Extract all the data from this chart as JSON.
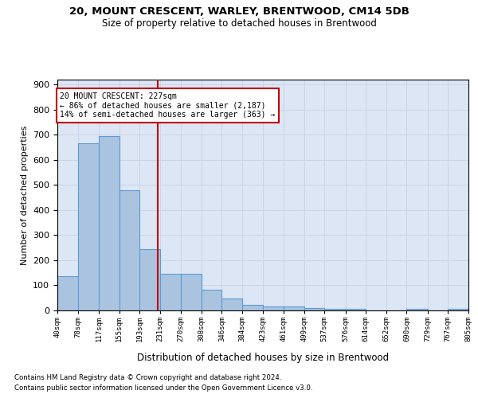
{
  "title": "20, MOUNT CRESCENT, WARLEY, BRENTWOOD, CM14 5DB",
  "subtitle": "Size of property relative to detached houses in Brentwood",
  "xlabel": "Distribution of detached houses by size in Brentwood",
  "ylabel": "Number of detached properties",
  "footnote1": "Contains HM Land Registry data © Crown copyright and database right 2024.",
  "footnote2": "Contains public sector information licensed under the Open Government Licence v3.0.",
  "annotation_line1": "20 MOUNT CRESCENT: 227sqm",
  "annotation_line2": "← 86% of detached houses are smaller (2,187)",
  "annotation_line3": "14% of semi-detached houses are larger (363) →",
  "property_size": 227,
  "bin_edges": [
    40,
    78,
    117,
    155,
    193,
    231,
    270,
    308,
    346,
    384,
    423,
    461,
    499,
    537,
    576,
    614,
    652,
    690,
    729,
    767,
    805
  ],
  "bar_heights": [
    135,
    665,
    695,
    480,
    245,
    145,
    145,
    83,
    47,
    23,
    17,
    17,
    10,
    7,
    7,
    0,
    0,
    7,
    0,
    7
  ],
  "bar_color": "#aac4e0",
  "bar_edge_color": "#5b9bd5",
  "vline_color": "#c00000",
  "vline_x": 227,
  "ylim": [
    0,
    920
  ],
  "yticks": [
    0,
    100,
    200,
    300,
    400,
    500,
    600,
    700,
    800,
    900
  ],
  "background_color": "#ffffff",
  "axes_bg_color": "#dce6f5",
  "grid_color": "#c8d4e8"
}
